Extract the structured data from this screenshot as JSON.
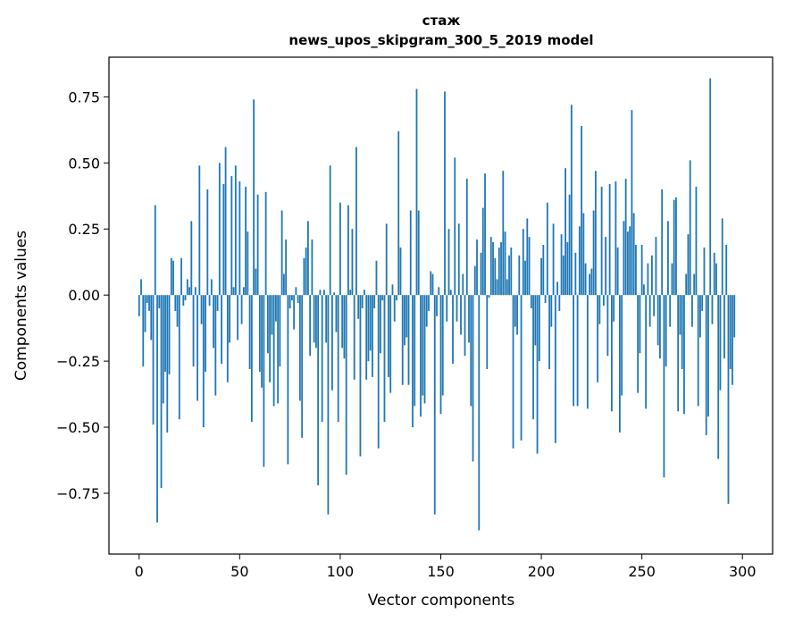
{
  "chart_data": {
    "type": "bar",
    "title": "стаж",
    "subtitle": "news_upos_skipgram_300_5_2019 model",
    "xlabel": "Vector components",
    "ylabel": "Components values",
    "xlim": [
      -15,
      315
    ],
    "ylim": [
      -0.98,
      0.9
    ],
    "xticks": [
      0,
      50,
      100,
      150,
      200,
      250,
      300
    ],
    "yticks": [
      -0.75,
      -0.5,
      -0.25,
      0.0,
      0.25,
      0.5,
      0.75
    ],
    "xtick_labels": [
      "0",
      "50",
      "100",
      "150",
      "200",
      "250",
      "300"
    ],
    "ytick_labels": [
      "−0.75",
      "−0.50",
      "−0.25",
      "0.00",
      "0.25",
      "0.50",
      "0.75"
    ],
    "bar_color": "#1f77b4",
    "grid": false,
    "legend": "none",
    "values": [
      -0.08,
      0.06,
      -0.27,
      -0.14,
      -0.03,
      -0.06,
      -0.17,
      -0.49,
      0.34,
      -0.86,
      -0.05,
      -0.73,
      -0.41,
      -0.29,
      -0.52,
      -0.3,
      0.14,
      0.13,
      -0.06,
      -0.12,
      -0.47,
      0.14,
      -0.04,
      -0.02,
      0.06,
      0.03,
      0.28,
      -0.27,
      0.03,
      -0.4,
      0.49,
      -0.11,
      -0.5,
      -0.29,
      0.4,
      -0.04,
      0.06,
      -0.2,
      -0.38,
      -0.06,
      0.5,
      -0.26,
      0.42,
      0.56,
      -0.33,
      -0.18,
      0.45,
      0.03,
      0.49,
      -0.17,
      0.43,
      -0.11,
      0.03,
      0.41,
      0.24,
      -0.28,
      -0.48,
      0.74,
      0.1,
      0.38,
      -0.29,
      -0.35,
      -0.65,
      0.39,
      -0.22,
      -0.33,
      -0.15,
      -0.42,
      -0.1,
      -0.41,
      -0.27,
      0.32,
      0.08,
      0.21,
      -0.64,
      -0.05,
      -0.02,
      -0.13,
      0.03,
      -0.03,
      -0.4,
      -0.54,
      0.14,
      0.18,
      0.28,
      -0.23,
      0.21,
      -0.18,
      -0.2,
      -0.72,
      0.02,
      -0.48,
      0.02,
      -0.18,
      -0.83,
      0.49,
      -0.36,
      0.01,
      -0.14,
      -0.48,
      0.35,
      -0.2,
      -0.24,
      -0.68,
      0.34,
      0.02,
      0.25,
      -0.32,
      0.56,
      -0.09,
      -0.61,
      -0.05,
      0.02,
      -0.32,
      -0.25,
      -0.21,
      -0.31,
      -0.05,
      0.13,
      -0.58,
      -0.22,
      -0.02,
      -0.48,
      0.27,
      -0.31,
      -0.37,
      0.04,
      -0.1,
      -0.02,
      0.62,
      0.18,
      -0.34,
      -0.19,
      -0.16,
      -0.34,
      0.32,
      -0.5,
      -0.42,
      0.78,
      0.32,
      -0.46,
      -0.38,
      -0.41,
      -0.12,
      -0.06,
      0.09,
      0.08,
      -0.83,
      -0.08,
      0.03,
      -0.45,
      -0.38,
      0.77,
      -0.1,
      0.25,
      0.02,
      -0.26,
      0.52,
      -0.1,
      0.27,
      -0.15,
      0.08,
      -0.23,
      0.44,
      -0.18,
      -0.42,
      -0.63,
      0.11,
      0.21,
      -0.89,
      0.16,
      0.33,
      0.46,
      -0.28,
      -0.01,
      0.22,
      0.2,
      0.14,
      0.06,
      0.18,
      0.2,
      0.47,
      0.24,
      0.06,
      0.15,
      0.18,
      -0.58,
      -0.12,
      -0.15,
      0.15,
      -0.55,
      0.25,
      0.13,
      0.29,
      0.22,
      -0.05,
      -0.47,
      -0.19,
      -0.6,
      -0.25,
      0.14,
      0.19,
      -0.03,
      0.35,
      -0.28,
      -0.12,
      0.27,
      -0.56,
      0.05,
      -0.06,
      0.23,
      0.15,
      0.48,
      0.2,
      0.38,
      0.72,
      -0.42,
      0.16,
      -0.42,
      0.26,
      0.64,
      0.31,
      0.12,
      -0.43,
      0.08,
      0.1,
      0.32,
      0.47,
      -0.33,
      -0.11,
      0.41,
      -0.04,
      0.22,
      -0.23,
      0.42,
      -0.44,
      -0.1,
      0.43,
      0.18,
      -0.52,
      -0.38,
      0.28,
      0.44,
      0.24,
      0.26,
      0.7,
      0.31,
      0.19,
      -0.37,
      -0.22,
      0.19,
      0.04,
      -0.43,
      0.12,
      -0.12,
      0.15,
      -0.08,
      0.22,
      -0.19,
      -0.24,
      0.4,
      -0.69,
      -0.27,
      0.28,
      -0.12,
      0.12,
      0.36,
      0.37,
      -0.44,
      -0.15,
      -0.28,
      -0.45,
      0.08,
      0.23,
      0.51,
      -0.12,
      0.08,
      0.41,
      -0.42,
      -0.16,
      -0.06,
      0.18,
      -0.53,
      -0.46,
      0.82,
      -0.11,
      0.16,
      0.12,
      -0.62,
      -0.36,
      0.29,
      -0.24,
      0.19,
      -0.79,
      -0.28,
      -0.34,
      -0.16
    ]
  }
}
